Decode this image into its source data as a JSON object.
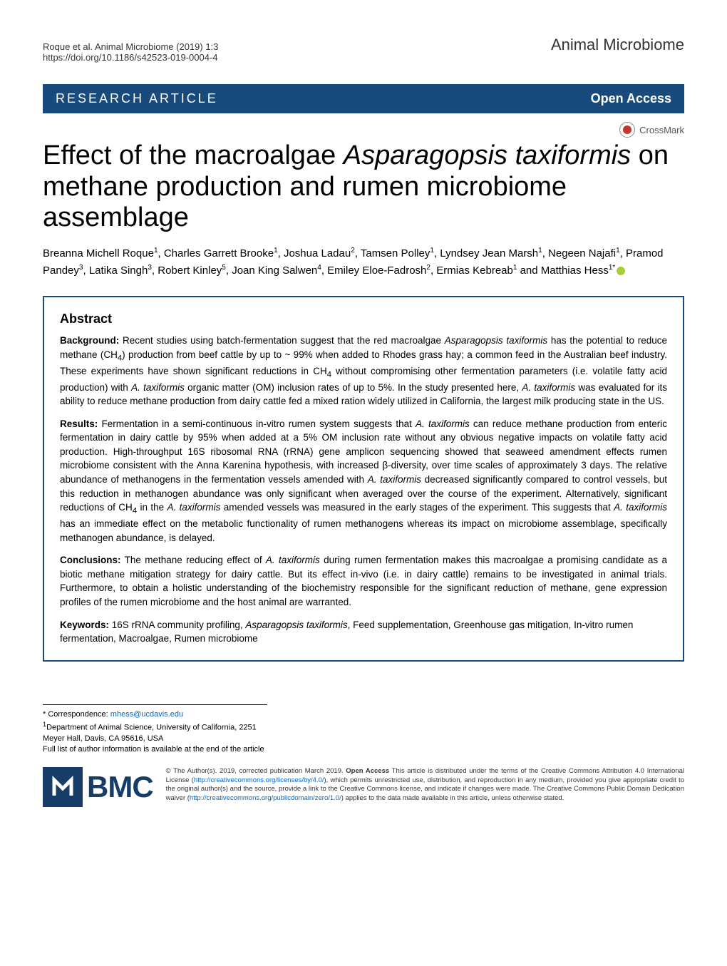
{
  "header": {
    "citation_line1": "Roque et al. Animal Microbiome           (2019) 1:3",
    "citation_line2": "https://doi.org/10.1186/s42523-019-0004-4",
    "journal": "Animal Microbiome"
  },
  "banner": {
    "article_type": "RESEARCH ARTICLE",
    "access": "Open Access"
  },
  "crossmark_label": "CrossMark",
  "title_html": "Effect of the macroalgae <em>Asparagopsis taxiformis</em> on methane production and rumen microbiome assemblage",
  "authors_html": "Breanna Michell Roque<sup>1</sup>, Charles Garrett Brooke<sup>1</sup>, Joshua Ladau<sup>2</sup>, Tamsen Polley<sup>1</sup>, Lyndsey Jean Marsh<sup>1</sup>, Negeen Najafi<sup>1</sup>, Pramod Pandey<sup>3</sup>, Latika Singh<sup>3</sup>, Robert Kinley<sup>5</sup>, Joan King Salwen<sup>4</sup>, Emiley Eloe-Fadrosh<sup>2</sup>, Ermias Kebreab<sup>1</sup> and Matthias Hess<sup>1*</sup>",
  "abstract": {
    "heading": "Abstract",
    "background_html": "<b>Background:</b> Recent studies using batch-fermentation suggest that the red macroalgae <em>Asparagopsis taxiformis</em> has the potential to reduce methane (CH<sub>4</sub>) production from beef cattle by up to ~ 99% when added to Rhodes grass hay; a common feed in the Australian beef industry. These experiments have shown significant reductions in CH<sub>4</sub> without compromising other fermentation parameters (i.e. volatile fatty acid production) with <em>A. taxiformis</em> organic matter (OM) inclusion rates of up to 5%. In the study presented here, <em>A. taxiformis</em> was evaluated for its ability to reduce methane production from dairy cattle fed a mixed ration widely utilized in California, the largest milk producing state in the US.",
    "results_html": "<b>Results:</b> Fermentation in a semi-continuous in-vitro rumen system suggests that <em>A. taxiformis</em> can reduce methane production from enteric fermentation in dairy cattle by 95% when added at a 5% OM inclusion rate without any obvious negative impacts on volatile fatty acid production. High-throughput 16S ribosomal RNA (rRNA) gene amplicon sequencing showed that seaweed amendment effects rumen microbiome consistent with the Anna Karenina hypothesis, with increased β-diversity, over time scales of approximately 3 days. The relative abundance of methanogens in the fermentation vessels amended with <em>A. taxiformis</em> decreased significantly compared to control vessels, but this reduction in methanogen abundance was only significant when averaged over the course of the experiment. Alternatively, significant reductions of CH<sub>4</sub> in the <em>A. taxiformis</em> amended vessels was measured in the early stages of the experiment. This suggests that <em>A. taxiformis</em> has an immediate effect on the metabolic functionality of rumen methanogens whereas its impact on microbiome assemblage, specifically methanogen abundance, is delayed.",
    "conclusions_html": "<b>Conclusions:</b> The methane reducing effect of <em>A. taxiformis</em> during rumen fermentation makes this macroalgae a promising candidate as a biotic methane mitigation strategy for dairy cattle. But its effect in-vivo (i.e. in dairy cattle) remains to be investigated in animal trials. Furthermore, to obtain a holistic understanding of the biochemistry responsible for the significant reduction of methane, gene expression profiles of the rumen microbiome and the host animal are warranted.",
    "keywords_html": "<b>Keywords:</b> 16S rRNA community profiling, <em>Asparagopsis taxiformis</em>, Feed supplementation, Greenhouse gas mitigation, In-vitro rumen fermentation, Macroalgae, Rumen microbiome"
  },
  "footer": {
    "correspondence_label": "* Correspondence:",
    "correspondence_email": "mhess@ucdavis.edu",
    "affiliation": "Department of Animal Science, University of California, 2251 Meyer Hall, Davis, CA 95616, USA",
    "full_list": "Full list of author information is available at the end of the article"
  },
  "bmc_label": "BMC",
  "license_html": "© The Author(s). 2019, corrected publication March 2019. <b>Open Access</b> This article is distributed under the terms of the Creative Commons Attribution 4.0 International License (<a href=\"#\">http://creativecommons.org/licenses/by/4.0/</a>), which permits unrestricted use, distribution, and reproduction in any medium, provided you give appropriate credit to the original author(s) and the source, provide a link to the Creative Commons license, and indicate if changes were made. The Creative Commons Public Domain Dedication waiver (<a href=\"#\">http://creativecommons.org/publicdomain/zero/1.0/</a>) applies to the data made available in this article, unless otherwise stated.",
  "colors": {
    "banner_bg": "#184a7b",
    "bmc_square": "#173d66",
    "crossmark_red": "#c0392b",
    "orcid_green": "#a6ce39",
    "link": "#0066cc"
  }
}
